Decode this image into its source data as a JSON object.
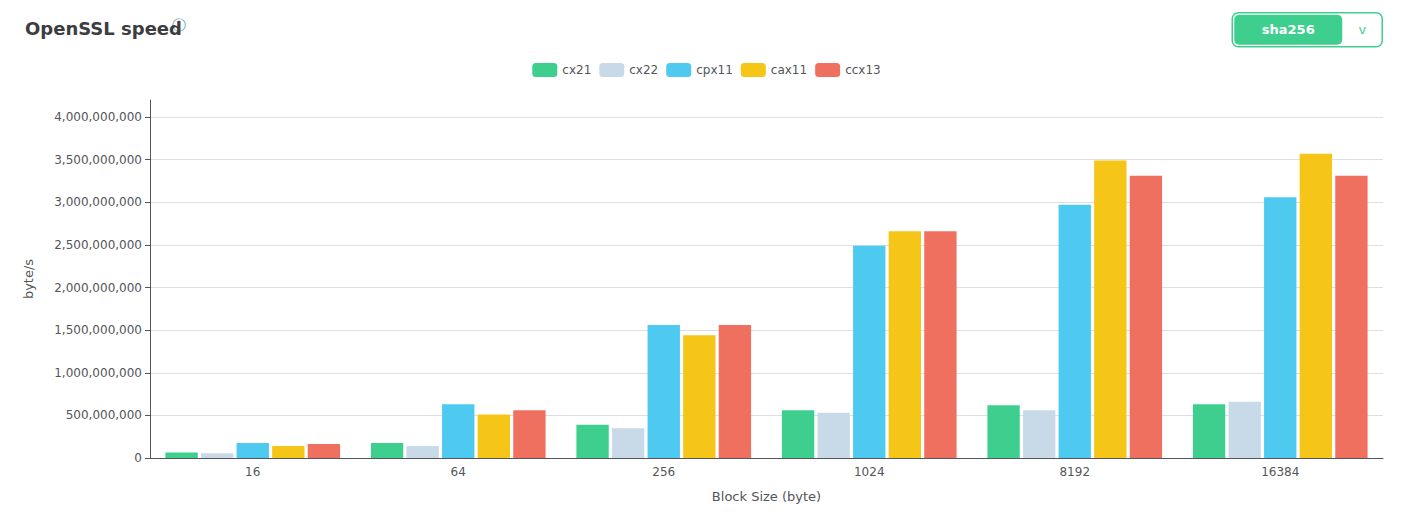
{
  "chart_data": {
    "type": "bar",
    "title": "OpenSSL speed",
    "annotations": [
      "ⓘ",
      "sha256",
      "v"
    ],
    "xlabel": "Block Size (byte)",
    "ylabel": "byte/s",
    "categories": [
      "16",
      "64",
      "256",
      "1024",
      "8192",
      "16384"
    ],
    "series": [
      {
        "name": "cx21",
        "color": "#3ecf8e",
        "values": [
          65000000,
          175000000,
          390000000,
          560000000,
          620000000,
          630000000
        ]
      },
      {
        "name": "cx22",
        "color": "#c8dae8",
        "values": [
          55000000,
          140000000,
          350000000,
          530000000,
          560000000,
          660000000
        ]
      },
      {
        "name": "cpx11",
        "color": "#4ec9f0",
        "values": [
          175000000,
          630000000,
          1560000000,
          2490000000,
          2970000000,
          3060000000
        ]
      },
      {
        "name": "cax11",
        "color": "#f5c518",
        "values": [
          140000000,
          510000000,
          1440000000,
          2660000000,
          3490000000,
          3570000000
        ]
      },
      {
        "name": "ccx13",
        "color": "#f07060",
        "values": [
          165000000,
          560000000,
          1560000000,
          2660000000,
          3310000000,
          3310000000
        ]
      }
    ],
    "ylim": [
      0,
      4200000000
    ],
    "yticks": [
      0,
      {
        "value": 500000000,
        "label": "500,000,000"
      },
      {
        "value": 1000000000,
        "label": "1,000,000,000"
      },
      {
        "value": 1500000000,
        "label": "1,500,000,000"
      },
      {
        "value": 2000000000,
        "label": "2,000,000,000"
      },
      {
        "value": 2500000000,
        "label": "2,500,000,000"
      },
      {
        "value": 3000000000,
        "label": "3,000,000,000"
      },
      {
        "value": 3500000000,
        "label": "3,500,000,000"
      },
      {
        "value": 4000000000,
        "label": "4,000,000,000"
      }
    ],
    "grid": true,
    "legend": "top"
  }
}
